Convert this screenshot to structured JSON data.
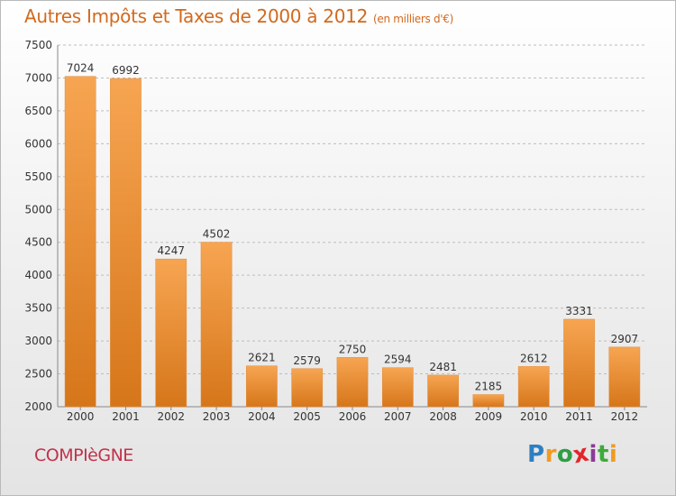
{
  "header": {
    "title": "Autres Impôts et Taxes de 2000 à 2012",
    "unit": "(en milliers d'€)"
  },
  "footer": {
    "city": "COMPIèGNE",
    "brand_letters": [
      "P",
      "r",
      "o",
      "x",
      "i",
      "t",
      "i"
    ],
    "brand_colors": [
      "#2e7fc2",
      "#f39a1e",
      "#2e9e45",
      "#e3262b",
      "#8c3a96",
      "#3cab3a",
      "#f39a1e"
    ]
  },
  "colors": {
    "bar_top": "#f7a552",
    "bar_bottom": "#d6761a",
    "grid": "#bdbdbd",
    "title": "#d2691e",
    "city": "#c0334a"
  },
  "chart_data": {
    "type": "bar",
    "categories": [
      "2000",
      "2001",
      "2002",
      "2003",
      "2004",
      "2005",
      "2006",
      "2007",
      "2008",
      "2009",
      "2010",
      "2011",
      "2012"
    ],
    "values": [
      7024,
      6992,
      4247,
      4502,
      2621,
      2579,
      2750,
      2594,
      2481,
      2185,
      2612,
      3331,
      2907
    ],
    "yticks": [
      "2000",
      "2500",
      "3000",
      "3500",
      "4000",
      "4500",
      "5000",
      "5500",
      "6000",
      "6500",
      "7000",
      "7500"
    ],
    "ylim": [
      2000,
      7500
    ],
    "grid": true,
    "legend": "none"
  }
}
